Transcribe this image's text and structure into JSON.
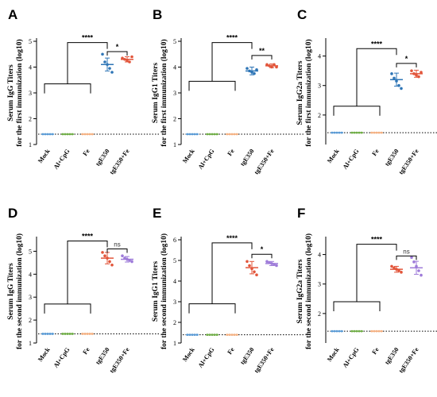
{
  "chart_data": [
    {
      "panel": "A",
      "type": "scatter",
      "ylabel_line1": "Serum IgG Titers",
      "ylabel_line2": "for the first immunization (log10)",
      "categories": [
        "Mock",
        "Al+CpG",
        "Fe",
        "tgE350",
        "tgE350+Fe"
      ],
      "ylim": [
        1,
        5
      ],
      "yticks": [
        1,
        2,
        3,
        4,
        5
      ],
      "baseline": 1.4,
      "series": [
        {
          "values": [
            1.4,
            1.4,
            1.4,
            1.4,
            1.4
          ],
          "mean": 1.4,
          "sd": 0,
          "color": "#5b9bd5"
        },
        {
          "values": [
            1.4,
            1.4,
            1.4,
            1.4,
            1.4
          ],
          "mean": 1.4,
          "sd": 0,
          "color": "#70ad47"
        },
        {
          "values": [
            1.4,
            1.4,
            1.4,
            1.4,
            1.4
          ],
          "mean": 1.4,
          "sd": 0,
          "color": "#f4b183"
        },
        {
          "values": [
            4.5,
            4.2,
            4.1,
            3.95,
            3.8
          ],
          "mean": 4.1,
          "sd": 0.25,
          "color": "#2e75b6"
        },
        {
          "values": [
            4.35,
            4.3,
            4.25,
            4.2,
            4.4
          ],
          "mean": 4.3,
          "sd": 0.1,
          "color": "#e2553a"
        }
      ],
      "comparisons": [
        {
          "type": "group",
          "label": "****",
          "level": 4.95,
          "lowline": 3.35
        },
        {
          "type": "pair",
          "label": "*",
          "level": 4.6
        }
      ]
    },
    {
      "panel": "B",
      "type": "scatter",
      "ylabel_line1": "Serum IgG1 Titers",
      "ylabel_line2": "for the first immunization (log10)",
      "categories": [
        "Mock",
        "Al+CpG",
        "Fe",
        "tgE350",
        "tgE350+Fe"
      ],
      "ylim": [
        1,
        5
      ],
      "yticks": [
        1,
        2,
        3,
        4,
        5
      ],
      "baseline": 1.4,
      "series": [
        {
          "values": [
            1.4,
            1.4,
            1.4,
            1.4,
            1.4
          ],
          "mean": 1.4,
          "sd": 0,
          "color": "#5b9bd5"
        },
        {
          "values": [
            1.4,
            1.4,
            1.4,
            1.4,
            1.4
          ],
          "mean": 1.4,
          "sd": 0,
          "color": "#70ad47"
        },
        {
          "values": [
            1.4,
            1.4,
            1.4,
            1.4,
            1.4
          ],
          "mean": 1.4,
          "sd": 0,
          "color": "#f4b183"
        },
        {
          "values": [
            3.95,
            3.85,
            3.8,
            3.75,
            3.9
          ],
          "mean": 3.85,
          "sd": 0.15,
          "color": "#2e75b6"
        },
        {
          "values": [
            4.1,
            4.05,
            4.0,
            4.1,
            4.0
          ],
          "mean": 4.05,
          "sd": 0.07,
          "color": "#e2553a"
        }
      ],
      "comparisons": [
        {
          "type": "group",
          "label": "****",
          "level": 4.95,
          "lowline": 3.45
        },
        {
          "type": "pair",
          "label": "**",
          "level": 4.45
        }
      ]
    },
    {
      "panel": "C",
      "type": "scatter",
      "ylabel_line1": "Serum IgG2a Titers",
      "ylabel_line2": "for the first immunization (log10)",
      "categories": [
        "Mock",
        "Al+CpG",
        "Fe",
        "tgE350",
        "tgE350+Fe"
      ],
      "ylim": [
        1,
        4.5
      ],
      "yticks": [
        2,
        3,
        4
      ],
      "baseline": 1.4,
      "series": [
        {
          "values": [
            1.4,
            1.4,
            1.4,
            1.4,
            1.4
          ],
          "mean": 1.4,
          "sd": 0,
          "color": "#5b9bd5"
        },
        {
          "values": [
            1.4,
            1.4,
            1.4,
            1.4,
            1.4
          ],
          "mean": 1.4,
          "sd": 0,
          "color": "#70ad47"
        },
        {
          "values": [
            1.4,
            1.4,
            1.4,
            1.4,
            1.4
          ],
          "mean": 1.4,
          "sd": 0,
          "color": "#f4b183"
        },
        {
          "values": [
            3.4,
            3.25,
            3.15,
            3.0,
            2.9
          ],
          "mean": 3.2,
          "sd": 0.22,
          "color": "#2e75b6"
        },
        {
          "values": [
            3.5,
            3.4,
            3.35,
            3.3,
            3.45
          ],
          "mean": 3.4,
          "sd": 0.12,
          "color": "#e2553a"
        }
      ],
      "comparisons": [
        {
          "type": "group",
          "label": "****",
          "level": 4.25,
          "lowline": 2.3
        },
        {
          "type": "pair",
          "label": "*",
          "level": 3.75
        }
      ]
    },
    {
      "panel": "D",
      "type": "scatter",
      "ylabel_line1": "Serum IgG Titers",
      "ylabel_line2": "for the second immunization (log10)",
      "categories": [
        "Mock",
        "Al+CpG",
        "Fe",
        "tgE350",
        "tgE350+Fe"
      ],
      "ylim": [
        1,
        5.5
      ],
      "yticks": [
        1,
        2,
        3,
        4,
        5
      ],
      "baseline": 1.4,
      "series": [
        {
          "values": [
            1.4,
            1.4,
            1.4,
            1.4,
            1.4
          ],
          "mean": 1.4,
          "sd": 0,
          "color": "#5b9bd5"
        },
        {
          "values": [
            1.4,
            1.4,
            1.4,
            1.4,
            1.4
          ],
          "mean": 1.4,
          "sd": 0,
          "color": "#70ad47"
        },
        {
          "values": [
            1.4,
            1.4,
            1.4,
            1.4,
            1.4
          ],
          "mean": 1.4,
          "sd": 0,
          "color": "#f4b183"
        },
        {
          "values": [
            4.95,
            4.8,
            4.7,
            4.55,
            4.4
          ],
          "mean": 4.7,
          "sd": 0.25,
          "color": "#e2553a"
        },
        {
          "values": [
            4.8,
            4.7,
            4.65,
            4.6,
            4.55
          ],
          "mean": 4.65,
          "sd": 0.12,
          "color": "#9e7bd9"
        }
      ],
      "comparisons": [
        {
          "type": "group",
          "label": "****",
          "level": 5.45,
          "lowline": 2.7
        },
        {
          "type": "pair",
          "label": "ns",
          "level": 5.1
        }
      ]
    },
    {
      "panel": "E",
      "type": "scatter",
      "ylabel_line1": "Serum IgG1 Titers",
      "ylabel_line2": "for the second immunization (log10)",
      "categories": [
        "Mock",
        "Al+CpG",
        "Fe",
        "tgE350",
        "tgE350+Fe"
      ],
      "ylim": [
        1,
        6
      ],
      "yticks": [
        1,
        2,
        3,
        4,
        5,
        6
      ],
      "baseline": 1.4,
      "series": [
        {
          "values": [
            1.4,
            1.4,
            1.4,
            1.4,
            1.4
          ],
          "mean": 1.4,
          "sd": 0,
          "color": "#5b9bd5"
        },
        {
          "values": [
            1.4,
            1.4,
            1.4,
            1.4,
            1.4
          ],
          "mean": 1.4,
          "sd": 0,
          "color": "#70ad47"
        },
        {
          "values": [
            1.4,
            1.4,
            1.4,
            1.4,
            1.4
          ],
          "mean": 1.4,
          "sd": 0,
          "color": "#f4b183"
        },
        {
          "values": [
            4.95,
            4.75,
            4.6,
            4.45,
            4.3
          ],
          "mean": 4.65,
          "sd": 0.3,
          "color": "#e2553a"
        },
        {
          "values": [
            4.95,
            4.9,
            4.85,
            4.8,
            4.75
          ],
          "mean": 4.85,
          "sd": 0.1,
          "color": "#9e7bd9"
        }
      ],
      "comparisons": [
        {
          "type": "group",
          "label": "****",
          "level": 5.85,
          "lowline": 2.9
        },
        {
          "type": "pair",
          "label": "*",
          "level": 5.3
        }
      ]
    },
    {
      "panel": "F",
      "type": "scatter",
      "ylabel_line1": "Serum IgG2a Titers",
      "ylabel_line2": "for the second immunization (log10)",
      "categories": [
        "Mock",
        "Al+CpG",
        "Fe",
        "tgE350",
        "tgE350+Fe"
      ],
      "ylim": [
        1,
        4.5
      ],
      "yticks": [
        2,
        3,
        4
      ],
      "baseline": 1.4,
      "series": [
        {
          "values": [
            1.4,
            1.4,
            1.4,
            1.4,
            1.4
          ],
          "mean": 1.4,
          "sd": 0,
          "color": "#5b9bd5"
        },
        {
          "values": [
            1.4,
            1.4,
            1.4,
            1.4,
            1.4
          ],
          "mean": 1.4,
          "sd": 0,
          "color": "#70ad47"
        },
        {
          "values": [
            1.4,
            1.4,
            1.4,
            1.4,
            1.4
          ],
          "mean": 1.4,
          "sd": 0,
          "color": "#f4b183"
        },
        {
          "values": [
            3.6,
            3.55,
            3.5,
            3.45,
            3.4
          ],
          "mean": 3.5,
          "sd": 0.1,
          "color": "#e2553a"
        },
        {
          "values": [
            3.9,
            3.75,
            3.6,
            3.45,
            3.3
          ],
          "mean": 3.55,
          "sd": 0.22,
          "color": "#9e7bd9"
        }
      ],
      "comparisons": [
        {
          "type": "group",
          "label": "****",
          "level": 4.35,
          "lowline": 2.4
        },
        {
          "type": "pair",
          "label": "ns",
          "level": 3.95
        }
      ]
    }
  ]
}
